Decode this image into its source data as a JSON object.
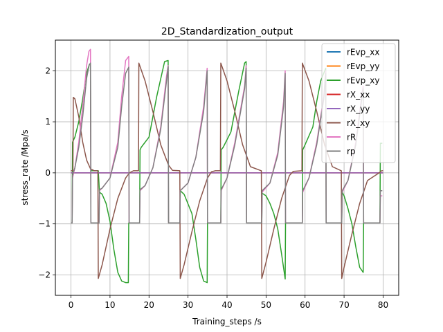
{
  "chart_data": {
    "type": "line",
    "title": "2D_Standardization_output",
    "xlabel": "Training_steps /s",
    "ylabel": "stress_rate /Mpa/s",
    "xlim": [
      -4,
      84
    ],
    "ylim": [
      -2.4,
      2.6
    ],
    "xticks": [
      "0",
      "10",
      "20",
      "30",
      "40",
      "50",
      "60",
      "70",
      "80"
    ],
    "yticks": [
      "−2",
      "−1",
      "0",
      "1",
      "2"
    ],
    "grid": true,
    "legend_position": "top-right",
    "series": [
      {
        "name": "rEvp_xx",
        "color": "#1f77b4",
        "x": [
          0,
          80
        ],
        "y": [
          0,
          0
        ]
      },
      {
        "name": "rEvp_yy",
        "color": "#ff7f0e",
        "x": [
          0,
          80
        ],
        "y": [
          0,
          0
        ]
      },
      {
        "name": "rEvp_xy",
        "color": "#2ca02c",
        "x": [
          0,
          0.3,
          0.4,
          1,
          2,
          3,
          4,
          4.7,
          5,
          5.1,
          6,
          7,
          7.3,
          8,
          9,
          10,
          11,
          12,
          13,
          14,
          14.7,
          14.8,
          17.6,
          17.7,
          18,
          20,
          22,
          24,
          24.9,
          25,
          27.9,
          28,
          29,
          31,
          32,
          33,
          34,
          34.9,
          35,
          38.4,
          38.5,
          39,
          41,
          43,
          44.5,
          44.9,
          45,
          48.9,
          49,
          50,
          51,
          52,
          53,
          54,
          54.9,
          55,
          59.3,
          59.4,
          60,
          62,
          63,
          64,
          65.3,
          65.4,
          69.4,
          69.5,
          70,
          71,
          72,
          73,
          74,
          74.9,
          75,
          79.2,
          79.3,
          79.8
        ],
        "y": [
          -0.98,
          -0.98,
          0.6,
          0.7,
          1.0,
          1.45,
          1.95,
          2.12,
          2.12,
          0.04,
          0.04,
          0.04,
          -0.38,
          -0.42,
          -0.6,
          -0.95,
          -1.5,
          -1.95,
          -2.12,
          -2.15,
          -2.15,
          -0.98,
          -0.98,
          0.45,
          0.5,
          0.7,
          1.5,
          2.18,
          2.2,
          -0.98,
          -0.98,
          -0.35,
          -0.42,
          -0.8,
          -1.3,
          -1.85,
          -2.12,
          -2.15,
          -0.98,
          -0.98,
          0.45,
          0.5,
          0.8,
          1.6,
          2.15,
          2.18,
          -0.98,
          -0.98,
          -0.4,
          -0.45,
          -0.6,
          -0.8,
          -1.1,
          -1.6,
          -2.08,
          -0.98,
          -0.98,
          0.45,
          0.55,
          0.9,
          1.4,
          1.8,
          2.05,
          -0.98,
          -0.98,
          -0.38,
          -0.45,
          -0.7,
          -1.0,
          -1.45,
          -1.85,
          -1.95,
          -0.98,
          -0.98,
          0.58,
          0.58
        ]
      },
      {
        "name": "rX_xx",
        "color": "#d62728",
        "x": [
          0,
          80
        ],
        "y": [
          0,
          0
        ]
      },
      {
        "name": "rX_yy",
        "color": "#9467bd",
        "x": [
          0,
          80
        ],
        "y": [
          0,
          0
        ]
      },
      {
        "name": "rX_xy",
        "color": "#8c564b",
        "x": [
          0,
          0.5,
          0.6,
          1,
          2,
          3,
          4,
          5,
          6,
          6.9,
          7.0,
          8,
          10,
          12,
          14,
          15,
          16,
          17.3,
          17.4,
          19,
          21,
          23,
          25,
          26,
          27.9,
          28.0,
          29,
          31,
          33,
          35,
          36,
          37,
          38.3,
          38.4,
          40,
          42,
          44,
          46,
          48.8,
          48.9,
          50,
          52,
          54,
          56,
          57,
          59.2,
          59.3,
          61,
          63,
          65,
          67,
          69.3,
          69.4,
          70,
          72,
          74,
          76,
          79,
          79.6,
          80
        ],
        "y": [
          0.04,
          0.04,
          1.48,
          1.45,
          1.1,
          0.6,
          0.25,
          0.08,
          0.04,
          0.04,
          -2.07,
          -1.8,
          -1.1,
          -0.5,
          -0.1,
          0.0,
          0.04,
          0.04,
          2.15,
          1.8,
          1.2,
          0.55,
          0.15,
          0.05,
          0.04,
          -2.07,
          -1.8,
          -1.15,
          -0.55,
          -0.1,
          0.02,
          0.04,
          0.04,
          2.15,
          1.8,
          1.2,
          0.55,
          0.12,
          0.04,
          -2.07,
          -1.75,
          -1.1,
          -0.5,
          -0.05,
          0.03,
          0.04,
          2.15,
          1.8,
          1.2,
          0.55,
          0.12,
          0.04,
          -2.07,
          -1.85,
          -1.2,
          -0.6,
          -0.15,
          0.0,
          0.04,
          0.04
        ]
      },
      {
        "name": "rR",
        "color": "#e377c2",
        "x": [
          0,
          0.3,
          0.4,
          1,
          2,
          3,
          4,
          4.6,
          5,
          5.1,
          7.2,
          7.3,
          8,
          10,
          12,
          13,
          14,
          14.8,
          14.9,
          17.6,
          17.7,
          19,
          21,
          23,
          24.5,
          24.9,
          25,
          27.9,
          28,
          30,
          32,
          34,
          34.9,
          35,
          38.4,
          38.5,
          40,
          42,
          44.5,
          44.9,
          45,
          48.9,
          49,
          51,
          53,
          54.5,
          54.9,
          55,
          59.3,
          59.4,
          61,
          63,
          64.8,
          65.3,
          65.4,
          69.4,
          69.5,
          71,
          73,
          74.8,
          74.9,
          75,
          79.2,
          79.3,
          79.8
        ],
        "y": [
          -0.98,
          -0.98,
          -0.1,
          0.1,
          0.6,
          1.3,
          2.1,
          2.38,
          2.42,
          -0.98,
          -0.98,
          -0.35,
          -0.3,
          -0.1,
          0.6,
          1.5,
          2.2,
          2.28,
          -0.98,
          -0.98,
          -0.35,
          -0.25,
          0.1,
          0.9,
          1.9,
          2.1,
          -0.98,
          -0.98,
          -0.35,
          -0.2,
          0.3,
          1.3,
          2.05,
          -0.98,
          -0.98,
          -0.35,
          -0.1,
          0.6,
          1.7,
          2.1,
          -0.98,
          -0.98,
          -0.38,
          -0.2,
          0.4,
          1.4,
          2.0,
          -0.98,
          -0.98,
          -0.38,
          -0.1,
          0.6,
          1.5,
          2.0,
          -0.98,
          -0.98,
          -0.38,
          -0.15,
          0.6,
          1.65,
          1.7,
          -0.98,
          -0.98,
          -0.45,
          -0.45
        ]
      },
      {
        "name": "rp",
        "color": "#7f7f7f",
        "x": [
          0,
          0.3,
          0.4,
          1,
          2,
          3,
          4,
          4.7,
          5,
          5.1,
          7.2,
          7.3,
          8,
          10,
          12,
          13,
          14,
          14.8,
          14.9,
          17.6,
          17.7,
          19,
          21,
          23,
          24.5,
          24.9,
          25,
          27.9,
          28,
          30,
          32,
          34,
          34.9,
          35,
          38.4,
          38.5,
          40,
          42,
          44.5,
          44.9,
          45,
          48.9,
          49,
          51,
          53,
          54.5,
          54.9,
          55,
          59.3,
          59.4,
          61,
          63,
          64.8,
          65.3,
          65.4,
          69.4,
          69.5,
          71,
          73,
          74.8,
          74.9,
          75,
          79.2,
          79.3,
          79.8
        ],
        "y": [
          -0.98,
          -0.98,
          -0.05,
          0.1,
          0.5,
          1.1,
          1.85,
          2.12,
          2.15,
          -0.98,
          -0.98,
          -0.33,
          -0.3,
          -0.1,
          0.5,
          1.3,
          1.95,
          2.07,
          -0.98,
          -0.98,
          -0.33,
          -0.25,
          0.1,
          0.85,
          1.8,
          2.08,
          -0.98,
          -0.98,
          -0.35,
          -0.2,
          0.3,
          1.2,
          2.0,
          -0.98,
          -0.98,
          -0.33,
          -0.1,
          0.55,
          1.65,
          2.05,
          -0.98,
          -0.98,
          -0.35,
          -0.2,
          0.35,
          1.3,
          1.95,
          -0.98,
          -0.98,
          -0.35,
          -0.1,
          0.55,
          1.45,
          1.95,
          -0.98,
          -0.98,
          -0.35,
          -0.15,
          0.55,
          1.6,
          1.65,
          -0.98,
          -0.98,
          -0.35,
          -0.35
        ]
      }
    ]
  }
}
